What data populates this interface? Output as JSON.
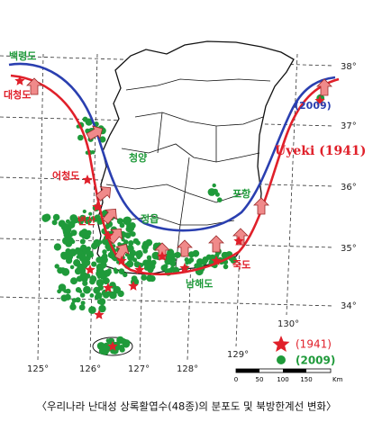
{
  "map": {
    "places": [
      "백령도",
      "대청도",
      "어청도",
      "청양",
      "변산",
      "정읍",
      "포항",
      "죽도",
      "남해도"
    ],
    "line_labels": [
      "(2009)",
      "Uyeki (1941)"
    ],
    "latitudes": [
      "38°",
      "37°",
      "36°",
      "35°",
      "34°"
    ],
    "longitudes": [
      "125°",
      "126°",
      "127°",
      "128°",
      "129°",
      "130°"
    ],
    "legend": [
      "(1941)",
      "(2009)"
    ],
    "scale": {
      "ticks": [
        "0",
        "50",
        "100",
        "150"
      ],
      "unit": "Km"
    },
    "caption": "〈우리나라 난대성 상록활엽수(48종)의 분포도 및 북방한계선 변화〉"
  }
}
